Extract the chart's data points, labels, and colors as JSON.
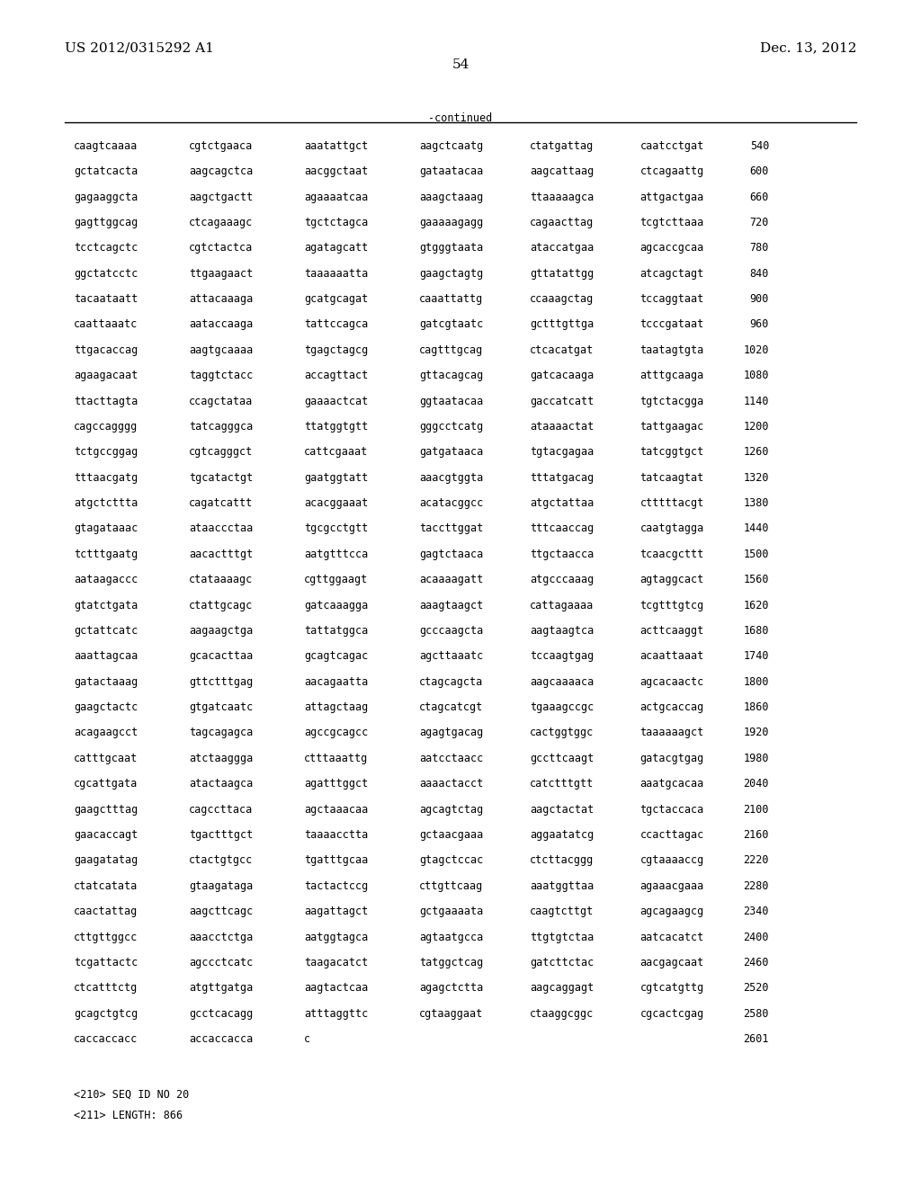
{
  "header_left": "US 2012/0315292 A1",
  "header_right": "Dec. 13, 2012",
  "page_number": "54",
  "continued_label": "-continued",
  "sequence_lines": [
    [
      "caagtcaaaa",
      "cgtctgaaca",
      "aaatattgct",
      "aagctcaatg",
      "ctatgattag",
      "caatcctgat",
      "540"
    ],
    [
      "gctatcacta",
      "aagcagctca",
      "aacggctaat",
      "gataatacaa",
      "aagcattaag",
      "ctcagaattg",
      "600"
    ],
    [
      "gagaaggcta",
      "aagctgactt",
      "agaaaatcaa",
      "aaagctaaag",
      "ttaaaaagca",
      "attgactgaa",
      "660"
    ],
    [
      "gagttggcag",
      "ctcagaaagc",
      "tgctctagca",
      "gaaaaagagg",
      "cagaacttag",
      "tcgtcttaaa",
      "720"
    ],
    [
      "tcctcagctc",
      "cgtctactca",
      "agatagcatt",
      "gtgggtaata",
      "ataccatgaa",
      "agcaccgcaa",
      "780"
    ],
    [
      "ggctatcctc",
      "ttgaagaact",
      "taaaaaatta",
      "gaagctagtg",
      "gttatattgg",
      "atcagctagt",
      "840"
    ],
    [
      "tacaataatt",
      "attacaaaga",
      "gcatgcagat",
      "caaattattg",
      "ccaaagctag",
      "tccaggtaat",
      "900"
    ],
    [
      "caattaaatc",
      "aataccaaga",
      "tattccagca",
      "gatcgtaatc",
      "gctttgttga",
      "tcccgataat",
      "960"
    ],
    [
      "ttgacaccag",
      "aagtgcaaaa",
      "tgagctagcg",
      "cagtttgcag",
      "ctcacatgat",
      "taatagtgta",
      "1020"
    ],
    [
      "agaagacaat",
      "taggtctacc",
      "accagttact",
      "gttacagcag",
      "gatcacaaga",
      "atttgcaaga",
      "1080"
    ],
    [
      "ttacttagta",
      "ccagctataa",
      "gaaaactcat",
      "ggtaatacaa",
      "gaccatcatt",
      "tgtctacgga",
      "1140"
    ],
    [
      "cagccagggg",
      "tatcagggca",
      "ttatggtgtt",
      "gggcctcatg",
      "ataaaactat",
      "tattgaagac",
      "1200"
    ],
    [
      "tctgccggag",
      "cgtcagggct",
      "cattcgaaat",
      "gatgataaca",
      "tgtacgagaa",
      "tatcggtgct",
      "1260"
    ],
    [
      "tttaacgatg",
      "tgcatactgt",
      "gaatggtatt",
      "aaacgtggta",
      "tttatgacag",
      "tatcaagtat",
      "1320"
    ],
    [
      "atgctcttta",
      "cagatcattt",
      "acacggaaat",
      "acatacggcc",
      "atgctattaa",
      "ctttttacgt",
      "1380"
    ],
    [
      "gtagataaac",
      "ataaccctaa",
      "tgcgcctgtt",
      "taccttggat",
      "tttcaaccag",
      "caatgtagga",
      "1440"
    ],
    [
      "tctttgaatg",
      "aacactttgt",
      "aatgtttcca",
      "gagtctaaca",
      "ttgctaacca",
      "tcaacgcttt",
      "1500"
    ],
    [
      "aataagaccc",
      "ctataaaagc",
      "cgttggaagt",
      "acaaaagatt",
      "atgcccaaag",
      "agtaggcact",
      "1560"
    ],
    [
      "gtatctgata",
      "ctattgcagc",
      "gatcaaagga",
      "aaagtaagct",
      "cattagaaaa",
      "tcgtttgtcg",
      "1620"
    ],
    [
      "gctattcatc",
      "aagaagctga",
      "tattatggca",
      "gcccaagcta",
      "aagtaagtca",
      "acttcaaggt",
      "1680"
    ],
    [
      "aaattagcaa",
      "gcacacttaa",
      "gcagtcagac",
      "agcttaaatc",
      "tccaagtgag",
      "acaattaaat",
      "1740"
    ],
    [
      "gatactaaag",
      "gttctttgag",
      "aacagaatta",
      "ctagcagcta",
      "aagcaaaaca",
      "agcacaactc",
      "1800"
    ],
    [
      "gaagctactc",
      "gtgatcaatc",
      "attagctaag",
      "ctagcatcgt",
      "tgaaagccgc",
      "actgcaccag",
      "1860"
    ],
    [
      "acagaagcct",
      "tagcagagca",
      "agccgcagcc",
      "agagtgacag",
      "cactggtggc",
      "taaaaaagct",
      "1920"
    ],
    [
      "catttgcaat",
      "atctaaggga",
      "ctttaaattg",
      "aatcctaacc",
      "gccttcaagt",
      "gatacgtgag",
      "1980"
    ],
    [
      "cgcattgata",
      "atactaagca",
      "agatttggct",
      "aaaactacct",
      "catctttgtt",
      "aaatgcacaa",
      "2040"
    ],
    [
      "gaagctttag",
      "cagccttaca",
      "agctaaacaa",
      "agcagtctag",
      "aagctactat",
      "tgctaccaca",
      "2100"
    ],
    [
      "gaacaccagt",
      "tgactttgct",
      "taaaacctta",
      "gctaacgaaa",
      "aggaatatcg",
      "ccacttagac",
      "2160"
    ],
    [
      "gaagatatag",
      "ctactgtgcc",
      "tgatttgcaa",
      "gtagctccac",
      "ctcttacggg",
      "cgtaaaaccg",
      "2220"
    ],
    [
      "ctatcatata",
      "gtaagataga",
      "tactactccg",
      "cttgttcaag",
      "aaatggttaa",
      "agaaacgaaa",
      "2280"
    ],
    [
      "caactattag",
      "aagcttcagc",
      "aagattagct",
      "gctgaaaata",
      "caagtcttgt",
      "agcagaagcg",
      "2340"
    ],
    [
      "cttgttggcc",
      "aaacctctga",
      "aatggtagca",
      "agtaatgcca",
      "ttgtgtctaa",
      "aatcacatct",
      "2400"
    ],
    [
      "tcgattactc",
      "agccctcatc",
      "taagacatct",
      "tatggctcag",
      "gatcttctac",
      "aacgagcaat",
      "2460"
    ],
    [
      "ctcatttctg",
      "atgttgatga",
      "aagtactcaa",
      "agagctctta",
      "aagcaggagt",
      "cgtcatgttg",
      "2520"
    ],
    [
      "gcagctgtcg",
      "gcctcacagg",
      "atttaggttc",
      "cgtaaggaat",
      "ctaaggcggc",
      "cgcactcgag",
      "2580"
    ],
    [
      "caccaccacc",
      "accaccacca",
      "c",
      "",
      "",
      "",
      "2601"
    ]
  ],
  "footer_lines": [
    "<210> SEQ ID NO 20",
    "<211> LENGTH: 866"
  ],
  "bg_color": "#ffffff",
  "text_color": "#000000",
  "font_size_header": 11,
  "font_size_body": 8.5,
  "font_size_page": 11,
  "font_size_footer": 8.5
}
